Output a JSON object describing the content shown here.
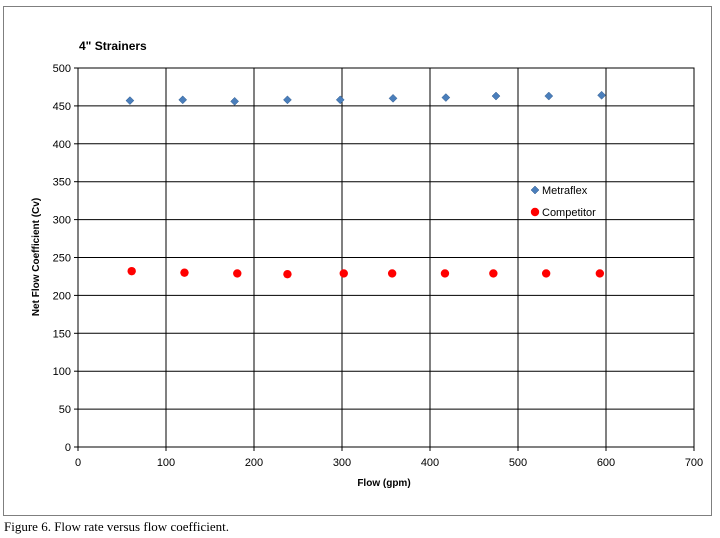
{
  "caption": "Figure 6.  Flow rate versus flow coefficient.",
  "chart_data": {
    "type": "scatter",
    "title": "4\" Strainers",
    "xlabel": "Flow (gpm)",
    "ylabel": "Net Flow Coefficient (Cv)",
    "xlim": [
      0,
      700
    ],
    "ylim": [
      0,
      500
    ],
    "xticks": [
      0,
      100,
      200,
      300,
      400,
      500,
      600,
      700
    ],
    "yticks": [
      0,
      50,
      100,
      150,
      200,
      250,
      300,
      350,
      400,
      450,
      500
    ],
    "grid": true,
    "legend_position": "right",
    "series": [
      {
        "name": "Metraflex",
        "marker": "diamond",
        "color": "#4a7ebb",
        "x": [
          59,
          119,
          178,
          238,
          298,
          358,
          418,
          475,
          535,
          595
        ],
        "y": [
          457,
          458,
          456,
          458,
          458,
          460,
          461,
          463,
          463,
          464
        ]
      },
      {
        "name": "Competitor",
        "marker": "circle",
        "color": "#ff0000",
        "x": [
          61,
          121,
          181,
          238,
          302,
          357,
          417,
          472,
          532,
          593
        ],
        "y": [
          232,
          230,
          229,
          228,
          229,
          229,
          229,
          229,
          229,
          229
        ]
      }
    ]
  }
}
